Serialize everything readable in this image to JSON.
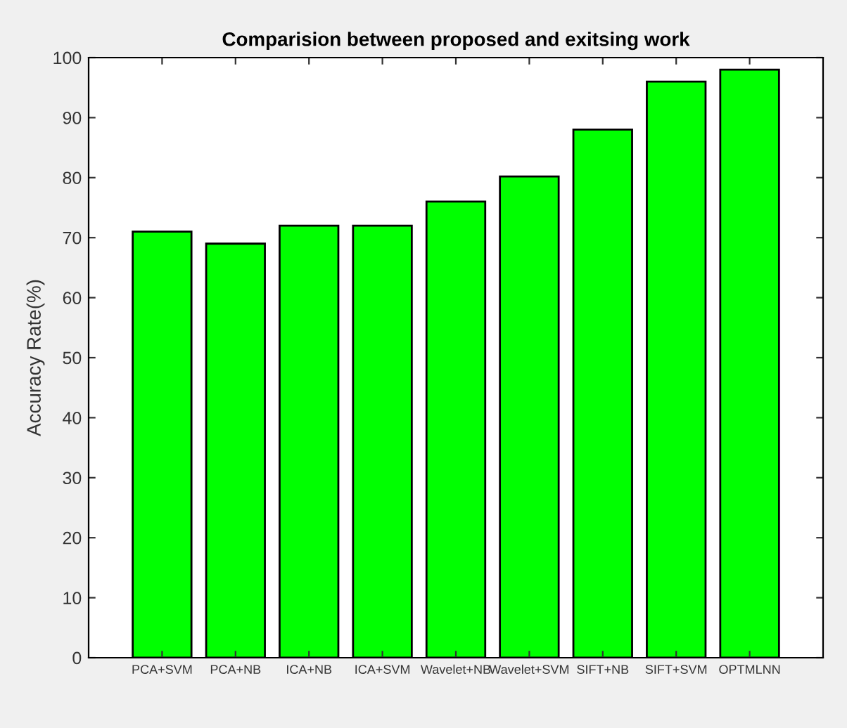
{
  "chart_data": {
    "type": "bar",
    "title": "Comparision between proposed and exitsing work",
    "ylabel": "Accuracy Rate(%)",
    "categories": [
      "PCA+SVM",
      "PCA+NB",
      "ICA+NB",
      "ICA+SVM",
      "Wavelet+NB",
      "Wavelet+SVM",
      "SIFT+NB",
      "SIFT+SVM",
      "OPTMLNN"
    ],
    "values": [
      71,
      69,
      72,
      72,
      76,
      80.2,
      88,
      96,
      98
    ],
    "color": "#00ff00",
    "ylim": [
      0,
      100
    ],
    "yticks": [
      0,
      10,
      20,
      30,
      40,
      50,
      60,
      70,
      80,
      90,
      100
    ],
    "grid": false,
    "legend": false
  }
}
